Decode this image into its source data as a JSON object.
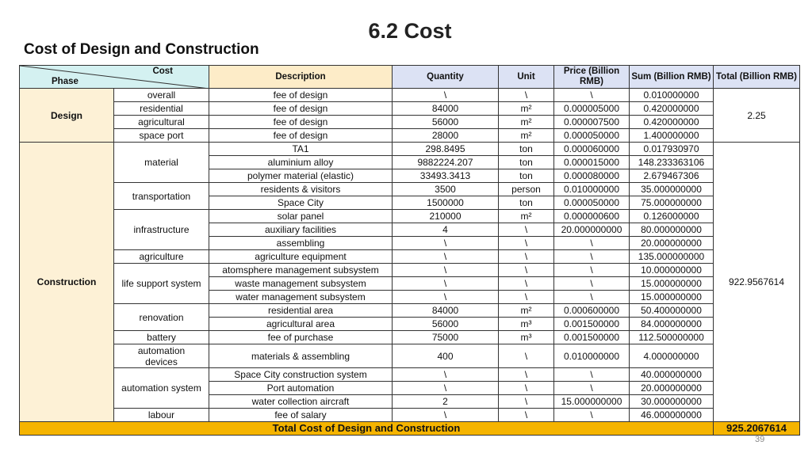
{
  "title": "6.2 Cost",
  "subtitle": "Cost of Design and Construction",
  "page_number": "39",
  "header": {
    "cost": "Cost",
    "phase": "Phase",
    "columns": [
      "Description",
      "Quantity",
      "Unit",
      "Price (Billion RMB)",
      "Sum (Billion RMB)",
      "Total (Billion RMB)"
    ]
  },
  "groups": [
    {
      "phase": "Design",
      "total": "2.25",
      "items": [
        {
          "cost": "overall",
          "rows": [
            [
              "fee of design",
              "\\",
              "\\",
              "\\",
              "0.010000000"
            ]
          ]
        },
        {
          "cost": "residential",
          "rows": [
            [
              "fee of design",
              "84000",
              "m²",
              "0.000005000",
              "0.420000000"
            ]
          ]
        },
        {
          "cost": "agricultural",
          "rows": [
            [
              "fee of design",
              "56000",
              "m²",
              "0.000007500",
              "0.420000000"
            ]
          ]
        },
        {
          "cost": "space port",
          "rows": [
            [
              "fee of design",
              "28000",
              "m²",
              "0.000050000",
              "1.400000000"
            ]
          ]
        }
      ]
    },
    {
      "phase": "Construction",
      "total": "922.9567614",
      "items": [
        {
          "cost": "material",
          "rows": [
            [
              "TA1",
              "298.8495",
              "ton",
              "0.000060000",
              "0.017930970"
            ],
            [
              "aluminium alloy",
              "9882224.207",
              "ton",
              "0.000015000",
              "148.233363106"
            ],
            [
              "polymer material (elastic)",
              "33493.3413",
              "ton",
              "0.000080000",
              "2.679467306"
            ]
          ]
        },
        {
          "cost": "transportation",
          "rows": [
            [
              "residents & visitors",
              "3500",
              "person",
              "0.010000000",
              "35.000000000"
            ],
            [
              "Space City",
              "1500000",
              "ton",
              "0.000050000",
              "75.000000000"
            ]
          ]
        },
        {
          "cost": "infrastructure",
          "rows": [
            [
              "solar panel",
              "210000",
              "m²",
              "0.000000600",
              "0.126000000"
            ],
            [
              "auxiliary facilities",
              "4",
              "\\",
              "20.000000000",
              "80.000000000"
            ],
            [
              "assembling",
              "\\",
              "\\",
              "\\",
              "20.000000000"
            ]
          ]
        },
        {
          "cost": "agriculture",
          "rows": [
            [
              "agriculture equipment",
              "\\",
              "\\",
              "\\",
              "135.000000000"
            ]
          ]
        },
        {
          "cost": "life support system",
          "rows": [
            [
              "atomsphere management subsystem",
              "\\",
              "\\",
              "\\",
              "10.000000000"
            ],
            [
              "waste management subsystem",
              "\\",
              "\\",
              "\\",
              "15.000000000"
            ],
            [
              "water management subsystem",
              "\\",
              "\\",
              "\\",
              "15.000000000"
            ]
          ]
        },
        {
          "cost": "renovation",
          "rows": [
            [
              "residential area",
              "84000",
              "m²",
              "0.000600000",
              "50.400000000"
            ],
            [
              "agricultural area",
              "56000",
              "m³",
              "0.001500000",
              "84.000000000"
            ]
          ]
        },
        {
          "cost": "battery",
          "rows": [
            [
              "fee of purchase",
              "75000",
              "m³",
              "0.001500000",
              "112.500000000"
            ]
          ]
        },
        {
          "cost": "automation devices",
          "rows": [
            [
              "materials & assembling",
              "400",
              "\\",
              "0.010000000",
              "4.000000000"
            ]
          ]
        },
        {
          "cost": "automation system",
          "rows": [
            [
              "Space City construction system",
              "\\",
              "\\",
              "\\",
              "40.000000000"
            ],
            [
              "Port automation",
              "\\",
              "\\",
              "\\",
              "20.000000000"
            ],
            [
              "water collection aircraft",
              "2",
              "\\",
              "15.000000000",
              "30.000000000"
            ]
          ]
        },
        {
          "cost": "labour",
          "rows": [
            [
              "fee of salary",
              "\\",
              "\\",
              "\\",
              "46.000000000"
            ]
          ]
        }
      ]
    }
  ],
  "footer": {
    "label": "Total Cost of Design and Construction",
    "total": "925.2067614"
  }
}
